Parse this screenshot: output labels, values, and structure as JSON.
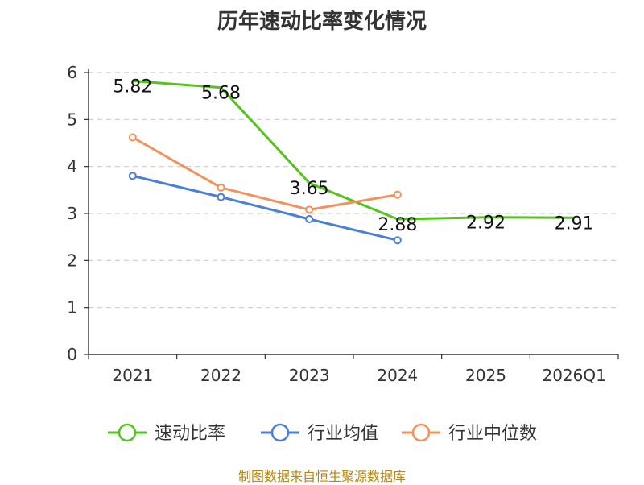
{
  "chart_data": {
    "type": "line",
    "title": "历年速动比率变化情况",
    "categories": [
      "2021",
      "2022",
      "2023",
      "2024",
      "2025",
      "2026Q1"
    ],
    "ylim": [
      0,
      6
    ],
    "yticks": [
      0,
      1,
      2,
      3,
      4,
      5,
      6
    ],
    "grid": true,
    "legend_position": "bottom",
    "series": [
      {
        "name": "速动比率",
        "color": "#52c41a",
        "values": [
          5.82,
          5.68,
          3.65,
          2.88,
          2.92,
          2.91
        ],
        "labels": [
          "5.82",
          "5.68",
          "3.65",
          "2.88",
          "2.92",
          "2.91"
        ],
        "show_markers": false
      },
      {
        "name": "行业均值",
        "color": "#4a7fd8",
        "values": [
          3.8,
          3.35,
          2.88,
          2.43,
          null,
          null
        ],
        "show_markers": true
      },
      {
        "name": "行业中位数",
        "color": "#f5905a",
        "values": [
          4.62,
          3.55,
          3.08,
          3.4,
          null,
          null
        ],
        "show_markers": true
      }
    ]
  },
  "source_text": "制图数据来自恒生聚源数据库"
}
